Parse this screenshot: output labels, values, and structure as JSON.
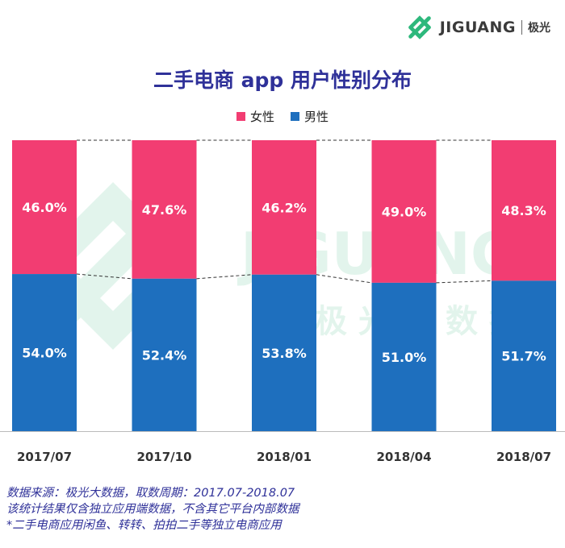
{
  "brand": {
    "name": "JIGUANG",
    "name_cn": "极光"
  },
  "watermark": {
    "text": "JIGUANG",
    "text_cn": "极光大数据"
  },
  "colors": {
    "female": "#f23d72",
    "male": "#1e6fbe",
    "title": "#2f3199",
    "watermark": "#7fd1ab",
    "logo": "#2db87c"
  },
  "chart_data": {
    "type": "bar",
    "stacked": true,
    "percent": true,
    "title": "二手电商 app 用户性别分布",
    "categories": [
      "2017/07",
      "2017/10",
      "2018/01",
      "2018/04",
      "2018/07"
    ],
    "series": [
      {
        "name": "女性",
        "values": [
          46.0,
          47.6,
          46.2,
          49.0,
          48.3
        ],
        "labels": [
          "46.0%",
          "47.6%",
          "46.2%",
          "49.0%",
          "48.3%"
        ]
      },
      {
        "name": "男性",
        "values": [
          54.0,
          52.4,
          53.8,
          51.0,
          51.7
        ],
        "labels": [
          "54.0%",
          "52.4%",
          "53.8%",
          "51.0%",
          "51.7%"
        ]
      }
    ],
    "ylim": [
      0,
      100
    ],
    "legend_position": "top-center",
    "grid": false
  },
  "footer": {
    "line1": "数据来源：极光大数据，取数周期：2017.07-2018.07",
    "line2": "该统计结果仅含独立应用端数据，不含其它平台内部数据",
    "line3": " *二手电商应用闲鱼、转转、拍拍二手等独立电商应用"
  }
}
